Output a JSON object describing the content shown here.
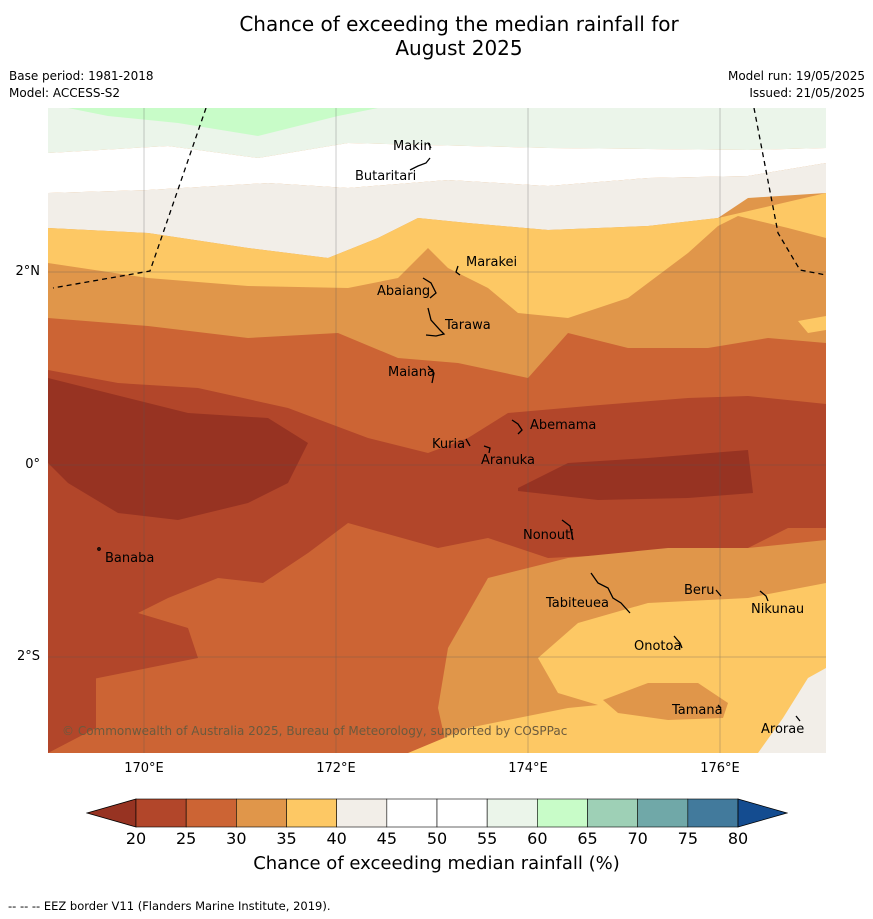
{
  "title_line1": "Chance of exceeding the median rainfall for",
  "title_line2": "August 2025",
  "base_period": "Base period: 1981-2018",
  "model": "Model: ACCESS-S2",
  "model_run": "Model run: 19/05/2025",
  "issued": "Issued: 21/05/2025",
  "copyright": "© Commonwealth of Australia 2025, Bureau of Meteorology, supported by COSPPac",
  "lat_labels": [
    "2°N",
    "0°",
    "2°S"
  ],
  "lon_labels": [
    "170°E",
    "172°E",
    "174°E",
    "176°E"
  ],
  "islands": [
    {
      "name": "Makin"
    },
    {
      "name": "Butaritari"
    },
    {
      "name": "Marakei"
    },
    {
      "name": "Abaiang"
    },
    {
      "name": "Tarawa"
    },
    {
      "name": "Maiana"
    },
    {
      "name": "Abemama"
    },
    {
      "name": "Kuria"
    },
    {
      "name": "Aranuka"
    },
    {
      "name": "Nonouti"
    },
    {
      "name": "Banaba"
    },
    {
      "name": "Tabiteuea"
    },
    {
      "name": "Beru"
    },
    {
      "name": "Nikunau"
    },
    {
      "name": "Onotoa"
    },
    {
      "name": "Tamana"
    },
    {
      "name": "Arorae"
    }
  ],
  "colorbar": {
    "ticks": [
      "20",
      "25",
      "30",
      "35",
      "40",
      "45",
      "50",
      "55",
      "60",
      "65",
      "70",
      "75",
      "80"
    ],
    "colors": [
      "#b2462a",
      "#cc6434",
      "#e0964a",
      "#fdc864",
      "#f2eee8",
      "#ffffff",
      "#ffffff",
      "#ebf5ea",
      "#c8fcc8",
      "#9ed0b6",
      "#70a8a8",
      "#427a9c"
    ],
    "under_color": "#973322",
    "over_color": "#144c90",
    "label": "Chance of exceeding median rainfall (%)"
  },
  "footer": "--  --  -- EEZ border V11 (Flanders Marine Institute, 2019)."
}
